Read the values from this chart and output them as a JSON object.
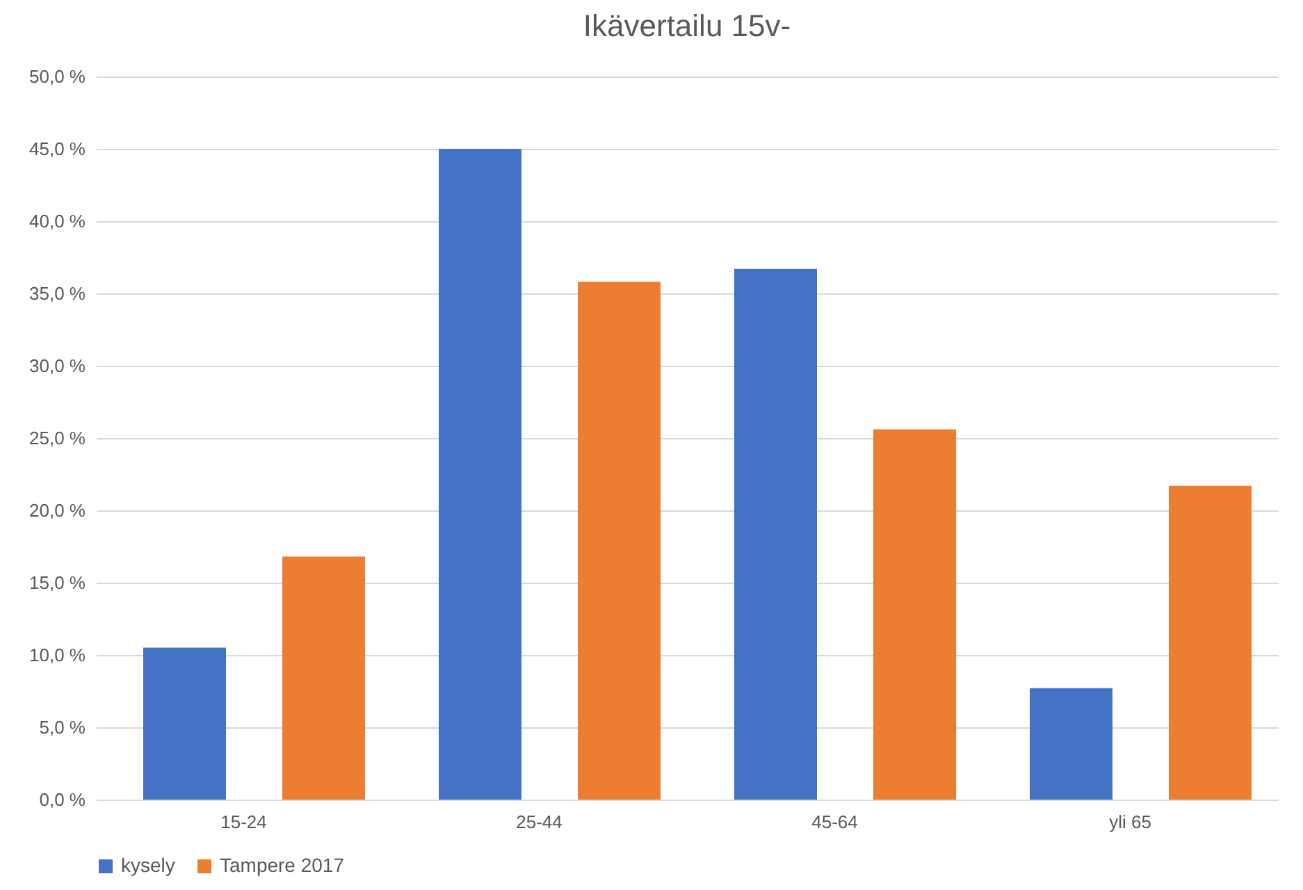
{
  "chart_data": {
    "type": "bar",
    "title": "Ikävertailu 15v-",
    "categories": [
      "15-24",
      "25-44",
      "45-64",
      "yli 65"
    ],
    "series": [
      {
        "name": "kysely",
        "color": "#4472c4",
        "values": [
          10.5,
          45.0,
          36.7,
          7.7
        ]
      },
      {
        "name": "Tampere 2017",
        "color": "#ed7d31",
        "values": [
          16.8,
          35.8,
          25.6,
          21.7
        ]
      }
    ],
    "ylim": [
      0,
      50
    ],
    "yticks": [
      {
        "value": 0,
        "label": "0,0 %"
      },
      {
        "value": 5,
        "label": "5,0 %"
      },
      {
        "value": 10,
        "label": "10,0 %"
      },
      {
        "value": 15,
        "label": "15,0 %"
      },
      {
        "value": 20,
        "label": "20,0 %"
      },
      {
        "value": 25,
        "label": "25,0 %"
      },
      {
        "value": 30,
        "label": "30,0 %"
      },
      {
        "value": 35,
        "label": "35,0 %"
      },
      {
        "value": 40,
        "label": "40,0 %"
      },
      {
        "value": 45,
        "label": "45,0 %"
      },
      {
        "value": 50,
        "label": "50,0 %"
      }
    ],
    "grid": "y",
    "legend": "bottom"
  }
}
